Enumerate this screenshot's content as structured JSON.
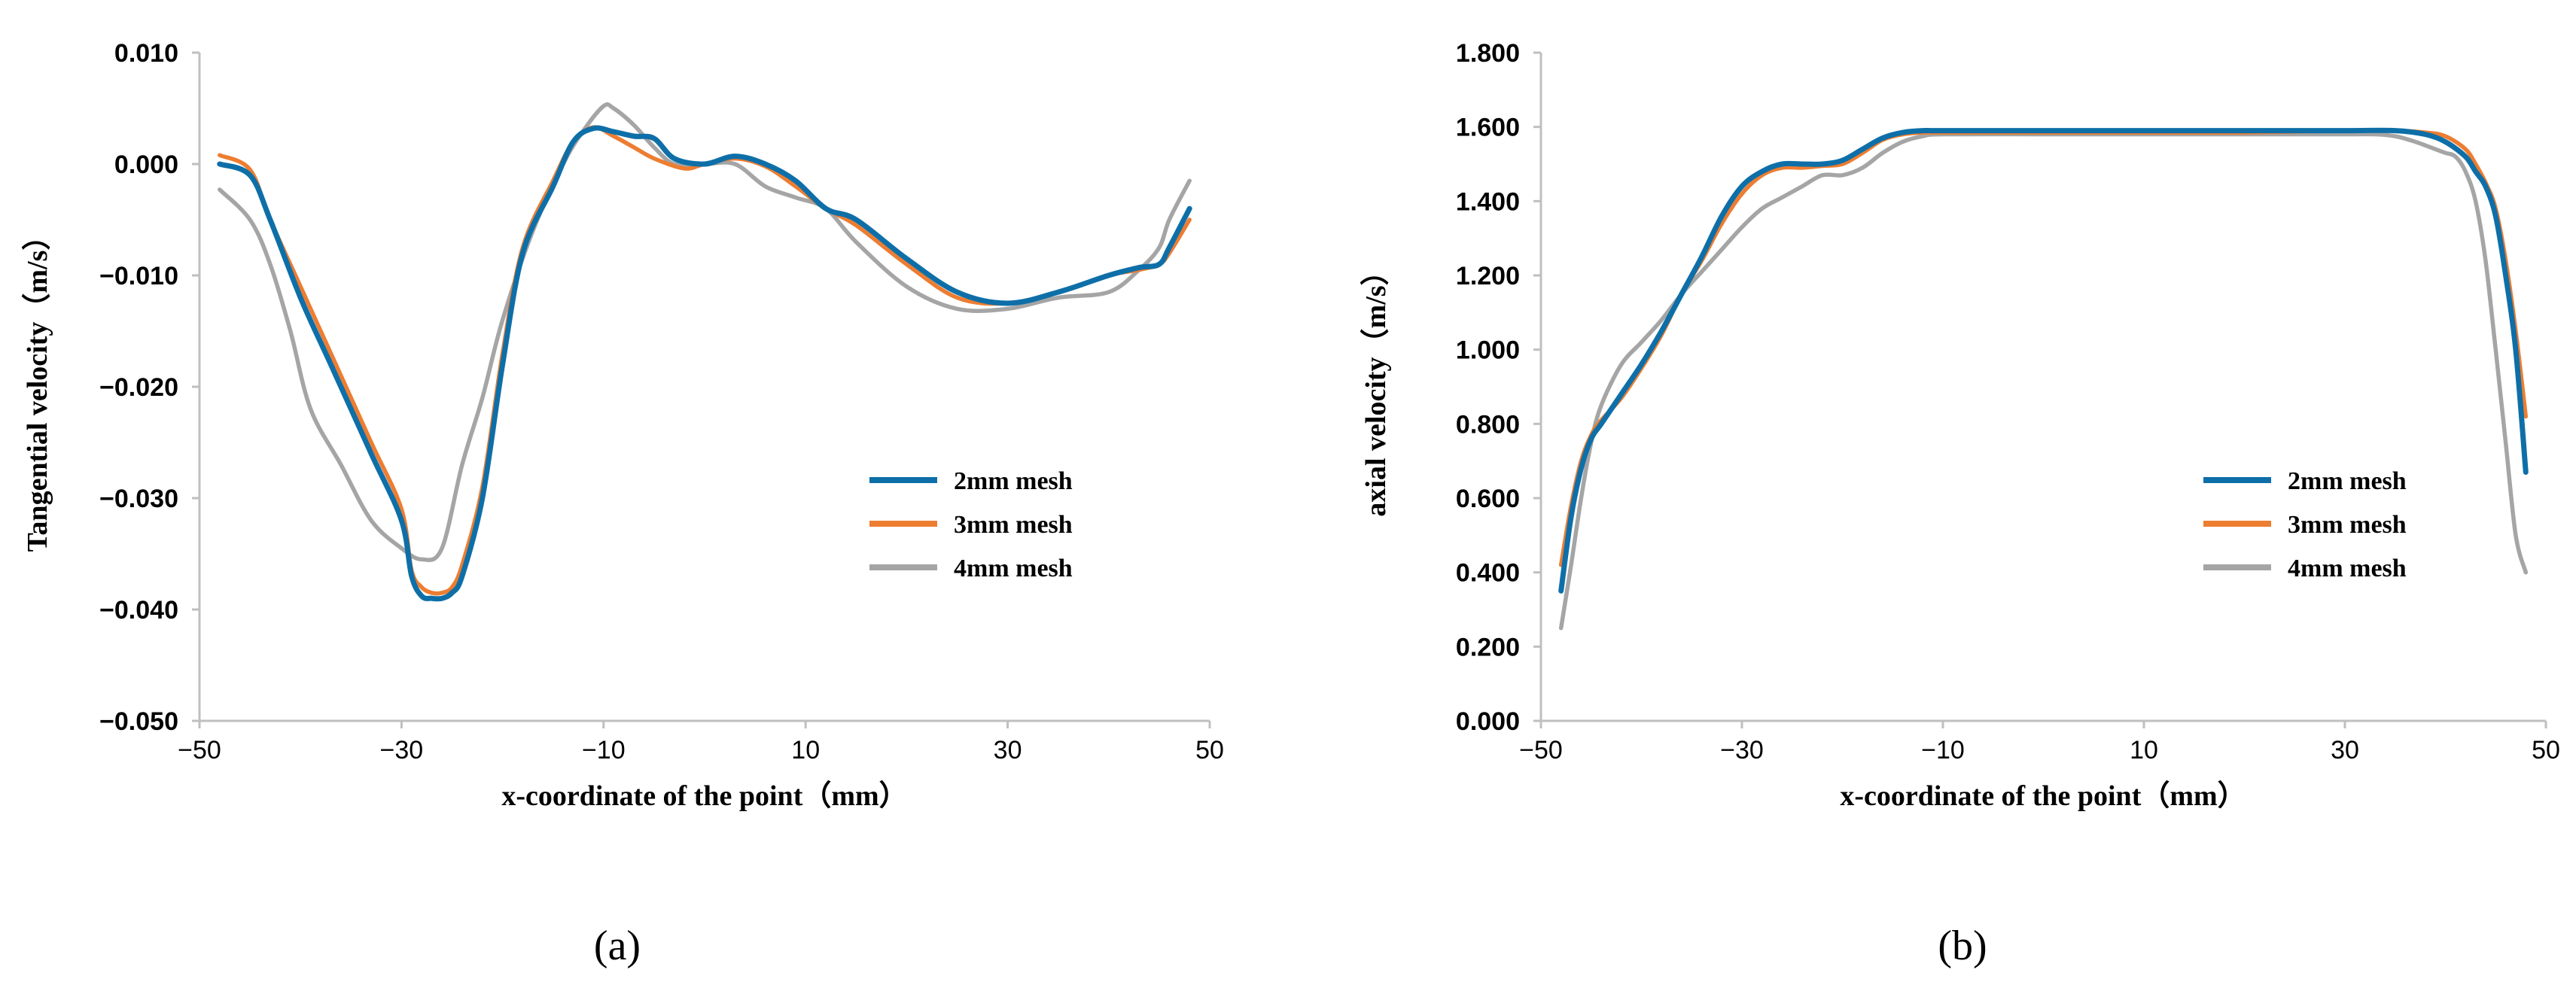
{
  "chart_data": [
    {
      "type": "line",
      "panel": "(a)",
      "title": "",
      "xlabel": "x-coordinate of the point（mm）",
      "ylabel": "Tangential velocity（m/s）",
      "xlim": [
        -50,
        50
      ],
      "ylim": [
        -0.05,
        0.01
      ],
      "xticks": [
        -50,
        -30,
        -10,
        10,
        30,
        50
      ],
      "xtick_labels": [
        "−50",
        "−30",
        "−10",
        "10",
        "30",
        "50"
      ],
      "yticks": [
        0.01,
        0.0,
        -0.01,
        -0.02,
        -0.03,
        -0.04,
        -0.05
      ],
      "ytick_labels": [
        "0.010",
        "0.000",
        "−0.010",
        "−0.020",
        "−0.030",
        "−0.040",
        "−0.050"
      ],
      "legend_position": "center-right",
      "series": [
        {
          "name": "2mm mesh",
          "color": "#0e6fa8",
          "x": [
            -48,
            -45,
            -43,
            -40,
            -37,
            -33,
            -30,
            -29,
            -28,
            -27,
            -26,
            -25,
            -24,
            -22,
            -20,
            -18,
            -15,
            -13,
            -11,
            -9,
            -7,
            -5,
            -3,
            0,
            3,
            6,
            9,
            12,
            15,
            20,
            25,
            30,
            35,
            40,
            43,
            45,
            46,
            48
          ],
          "y": [
            0.0,
            -0.001,
            -0.005,
            -0.012,
            -0.018,
            -0.026,
            -0.032,
            -0.037,
            -0.0388,
            -0.039,
            -0.039,
            -0.0385,
            -0.037,
            -0.03,
            -0.018,
            -0.008,
            -0.002,
            0.002,
            0.0032,
            0.0029,
            0.0025,
            0.0023,
            0.0005,
            0.0,
            0.0007,
            0.0,
            -0.0015,
            -0.004,
            -0.005,
            -0.0085,
            -0.0115,
            -0.0125,
            -0.0115,
            -0.01,
            -0.0093,
            -0.009,
            -0.0075,
            -0.004
          ]
        },
        {
          "name": "3mm mesh",
          "color": "#ed7d31",
          "x": [
            -48,
            -45,
            -43,
            -40,
            -37,
            -33,
            -30,
            -29,
            -28,
            -27,
            -26,
            -25,
            -24,
            -22,
            -20,
            -18,
            -15,
            -13,
            -11,
            -9,
            -7,
            -5,
            -2,
            0,
            3,
            6,
            9,
            12,
            15,
            20,
            25,
            30,
            35,
            40,
            43,
            45,
            46,
            48
          ],
          "y": [
            0.0008,
            -0.0005,
            -0.005,
            -0.011,
            -0.017,
            -0.025,
            -0.031,
            -0.0365,
            -0.038,
            -0.0385,
            -0.0385,
            -0.038,
            -0.036,
            -0.029,
            -0.017,
            -0.0075,
            -0.0015,
            0.002,
            0.0033,
            0.0025,
            0.0015,
            0.0005,
            -0.0004,
            0.0,
            0.0005,
            -0.0002,
            -0.002,
            -0.004,
            -0.0055,
            -0.009,
            -0.012,
            -0.0125,
            -0.0115,
            -0.01,
            -0.0095,
            -0.009,
            -0.008,
            -0.005
          ]
        },
        {
          "name": "4mm mesh",
          "color": "#a5a5a5",
          "x": [
            -48,
            -45,
            -43,
            -41,
            -39,
            -36,
            -33,
            -30,
            -28,
            -26,
            -24,
            -22,
            -20,
            -17,
            -14,
            -12,
            -10,
            -9,
            -7,
            -5,
            -3,
            0,
            3,
            6,
            9,
            12,
            15,
            20,
            25,
            30,
            35,
            40,
            43,
            45,
            46,
            48
          ],
          "y": [
            -0.0023,
            -0.005,
            -0.009,
            -0.015,
            -0.022,
            -0.027,
            -0.032,
            -0.0345,
            -0.0355,
            -0.0345,
            -0.027,
            -0.021,
            -0.014,
            -0.006,
            0.0,
            0.003,
            0.0052,
            0.005,
            0.0035,
            0.0015,
            0.0,
            0.0,
            0.0,
            -0.002,
            -0.003,
            -0.004,
            -0.007,
            -0.011,
            -0.013,
            -0.013,
            -0.012,
            -0.0115,
            -0.0095,
            -0.0075,
            -0.005,
            -0.0015
          ]
        }
      ]
    },
    {
      "type": "line",
      "panel": "(b)",
      "title": "",
      "xlabel": "x-coordinate of the point（mm）",
      "ylabel": "axial velocity（m/s）",
      "xlim": [
        -50,
        50
      ],
      "ylim": [
        0.0,
        1.8
      ],
      "xticks": [
        -50,
        -30,
        -10,
        10,
        30,
        50
      ],
      "xtick_labels": [
        "−50",
        "−30",
        "−10",
        "10",
        "30",
        "50"
      ],
      "yticks": [
        1.8,
        1.6,
        1.4,
        1.2,
        1.0,
        0.8,
        0.6,
        0.4,
        0.2,
        0.0
      ],
      "ytick_labels": [
        "1.800",
        "1.600",
        "1.400",
        "1.200",
        "1.000",
        "0.800",
        "0.600",
        "0.400",
        "0.200",
        "0.000"
      ],
      "legend_position": "bottom-right",
      "series": [
        {
          "name": "2mm mesh",
          "color": "#0e6fa8",
          "x": [
            -48,
            -47,
            -46,
            -45,
            -44,
            -42,
            -40,
            -38,
            -36,
            -34,
            -32,
            -30,
            -28,
            -26,
            -24,
            -22,
            -20,
            -18,
            -16,
            -14,
            -12,
            -10,
            0,
            10,
            20,
            30,
            35,
            38,
            40,
            42,
            43,
            44,
            45,
            46,
            47,
            48
          ],
          "y": [
            0.35,
            0.55,
            0.68,
            0.76,
            0.8,
            0.88,
            0.96,
            1.05,
            1.15,
            1.25,
            1.36,
            1.44,
            1.48,
            1.5,
            1.5,
            1.5,
            1.51,
            1.54,
            1.57,
            1.585,
            1.59,
            1.59,
            1.59,
            1.59,
            1.59,
            1.59,
            1.59,
            1.58,
            1.56,
            1.52,
            1.48,
            1.44,
            1.36,
            1.2,
            1.0,
            0.67
          ]
        },
        {
          "name": "3mm mesh",
          "color": "#ed7d31",
          "x": [
            -48,
            -47,
            -46,
            -45,
            -44,
            -42,
            -40,
            -38,
            -36,
            -34,
            -32,
            -30,
            -28,
            -26,
            -24,
            -22,
            -20,
            -18,
            -16,
            -14,
            -12,
            -10,
            0,
            10,
            20,
            30,
            35,
            38,
            40,
            42,
            43,
            44,
            45,
            46,
            47,
            48
          ],
          "y": [
            0.42,
            0.58,
            0.7,
            0.77,
            0.81,
            0.87,
            0.95,
            1.04,
            1.15,
            1.24,
            1.34,
            1.42,
            1.47,
            1.49,
            1.49,
            1.495,
            1.5,
            1.53,
            1.565,
            1.58,
            1.585,
            1.585,
            1.585,
            1.585,
            1.585,
            1.59,
            1.59,
            1.585,
            1.575,
            1.54,
            1.5,
            1.45,
            1.38,
            1.24,
            1.05,
            0.82
          ]
        },
        {
          "name": "4mm mesh",
          "color": "#a5a5a5",
          "x": [
            -48,
            -47,
            -46,
            -45,
            -44,
            -42,
            -40,
            -38,
            -36,
            -34,
            -32,
            -30,
            -28,
            -26,
            -24,
            -22,
            -20,
            -18,
            -16,
            -14,
            -12,
            -10,
            0,
            10,
            20,
            30,
            33,
            35,
            37,
            39,
            40,
            41,
            42,
            43,
            44,
            45,
            46,
            47,
            48
          ],
          "y": [
            0.25,
            0.42,
            0.6,
            0.75,
            0.85,
            0.96,
            1.02,
            1.08,
            1.15,
            1.21,
            1.27,
            1.33,
            1.38,
            1.41,
            1.44,
            1.47,
            1.47,
            1.49,
            1.53,
            1.56,
            1.575,
            1.58,
            1.58,
            1.58,
            1.58,
            1.58,
            1.58,
            1.575,
            1.56,
            1.54,
            1.53,
            1.52,
            1.48,
            1.4,
            1.24,
            1.0,
            0.75,
            0.5,
            0.4
          ]
        }
      ]
    }
  ],
  "captions": [
    "(a)",
    "(b)"
  ]
}
